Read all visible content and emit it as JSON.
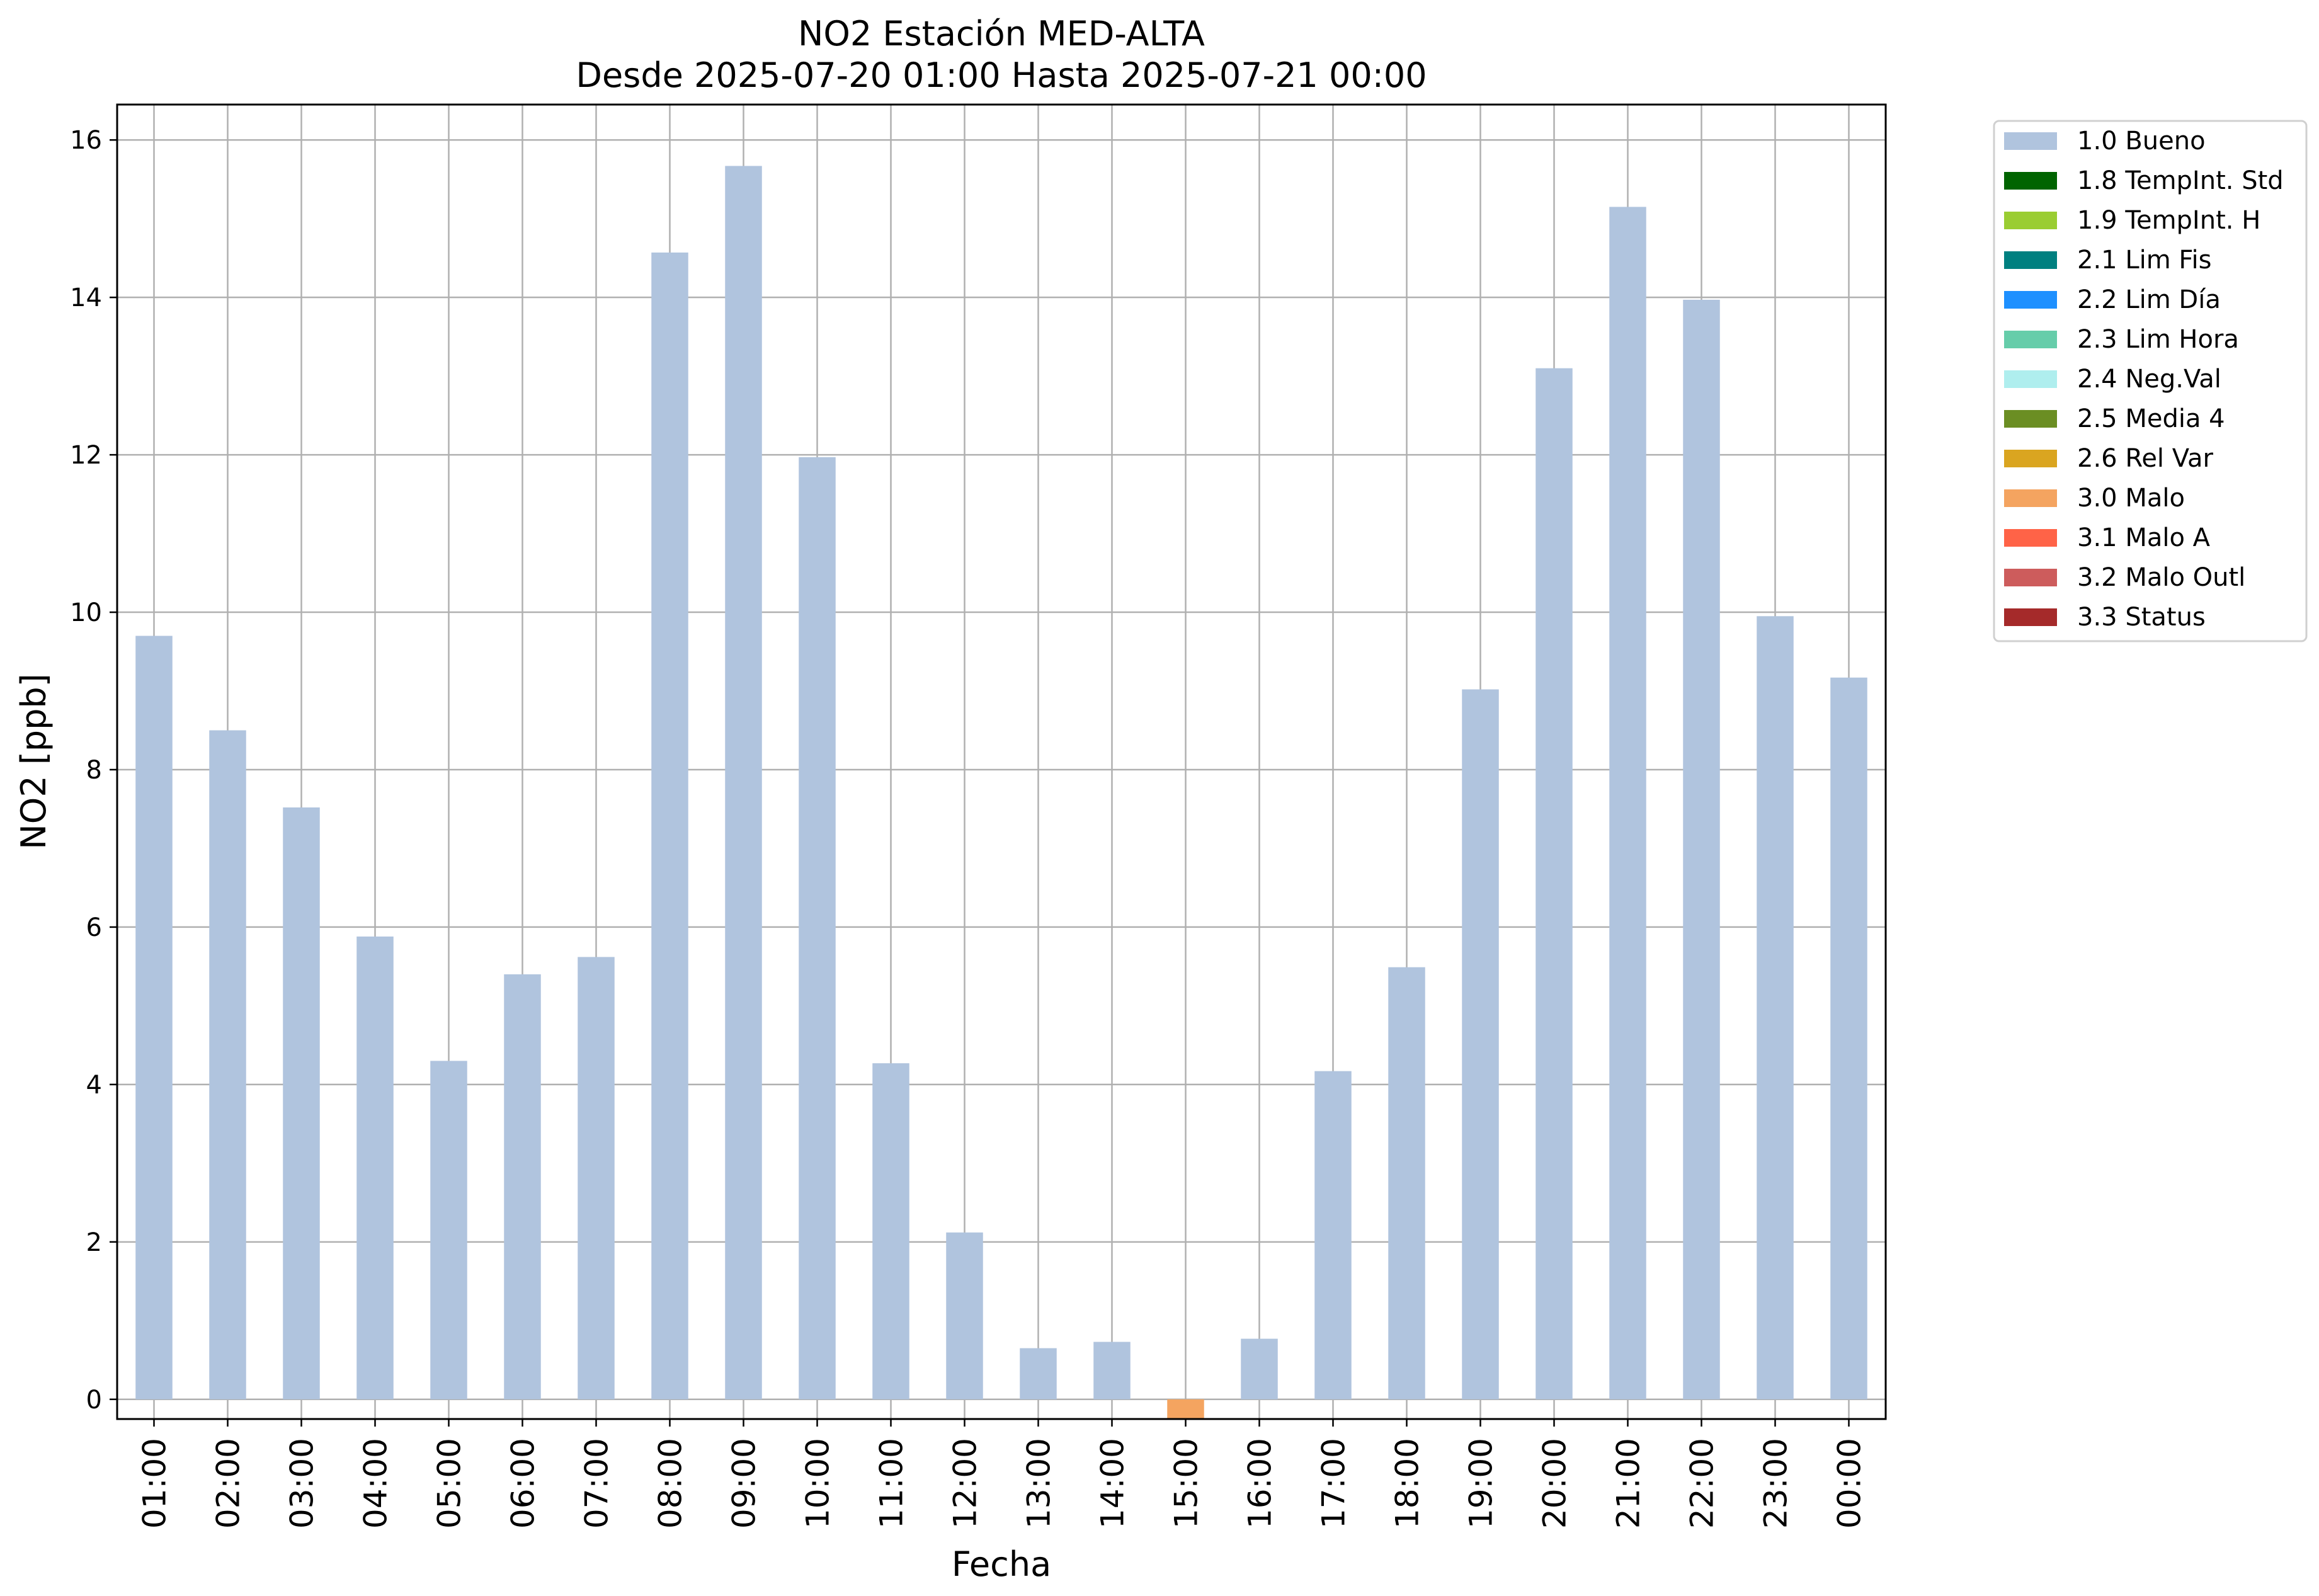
{
  "chart_data": {
    "type": "bar",
    "title": "NO2 Estación MED-ALTA",
    "subtitle": "Desde 2025-07-20 01:00 Hasta 2025-07-21 00:00",
    "xlabel": "Fecha",
    "ylabel": "NO2 [ppb]",
    "ylim": [
      -0.25,
      16.45
    ],
    "yticks": [
      0,
      2,
      4,
      6,
      8,
      10,
      12,
      14,
      16
    ],
    "grid": true,
    "legend_position": "outside-right-top",
    "categories": [
      "01:00",
      "02:00",
      "03:00",
      "04:00",
      "05:00",
      "06:00",
      "07:00",
      "08:00",
      "09:00",
      "10:00",
      "11:00",
      "12:00",
      "13:00",
      "14:00",
      "15:00",
      "16:00",
      "17:00",
      "18:00",
      "19:00",
      "20:00",
      "21:00",
      "22:00",
      "23:00",
      "00:00"
    ],
    "values": [
      9.7,
      8.5,
      7.52,
      5.88,
      4.3,
      5.4,
      5.62,
      14.57,
      15.67,
      11.97,
      4.27,
      2.12,
      0.65,
      0.73,
      -0.25,
      0.77,
      4.17,
      5.49,
      9.02,
      13.1,
      15.15,
      13.97,
      9.95,
      9.17
    ],
    "flags": [
      "1.0 Bueno",
      "1.0 Bueno",
      "1.0 Bueno",
      "1.0 Bueno",
      "1.0 Bueno",
      "1.0 Bueno",
      "1.0 Bueno",
      "1.0 Bueno",
      "1.0 Bueno",
      "1.0 Bueno",
      "1.0 Bueno",
      "1.0 Bueno",
      "1.0 Bueno",
      "1.0 Bueno",
      "3.0 Malo",
      "1.0 Bueno",
      "1.0 Bueno",
      "1.0 Bueno",
      "1.0 Bueno",
      "1.0 Bueno",
      "1.0 Bueno",
      "1.0 Bueno",
      "1.0 Bueno",
      "1.0 Bueno"
    ],
    "legend": [
      {
        "label": "1.0 Bueno",
        "color": "#b0c4de"
      },
      {
        "label": "1.8 TempInt. Std",
        "color": "#006400"
      },
      {
        "label": "1.9 TempInt. H",
        "color": "#9acd32"
      },
      {
        "label": "2.1 Lim Fis",
        "color": "#008080"
      },
      {
        "label": "2.2 Lim Día",
        "color": "#1e90ff"
      },
      {
        "label": "2.3 Lim Hora",
        "color": "#66cdaa"
      },
      {
        "label": "2.4 Neg.Val",
        "color": "#afeeee"
      },
      {
        "label": "2.5 Media 4",
        "color": "#6b8e23"
      },
      {
        "label": "2.6 Rel Var",
        "color": "#daa520"
      },
      {
        "label": "3.0 Malo",
        "color": "#f4a460"
      },
      {
        "label": "3.1 Malo A",
        "color": "#ff6347"
      },
      {
        "label": "3.2 Malo Outl",
        "color": "#cd5c5c"
      },
      {
        "label": "3.3 Status",
        "color": "#a52a2a"
      }
    ]
  }
}
